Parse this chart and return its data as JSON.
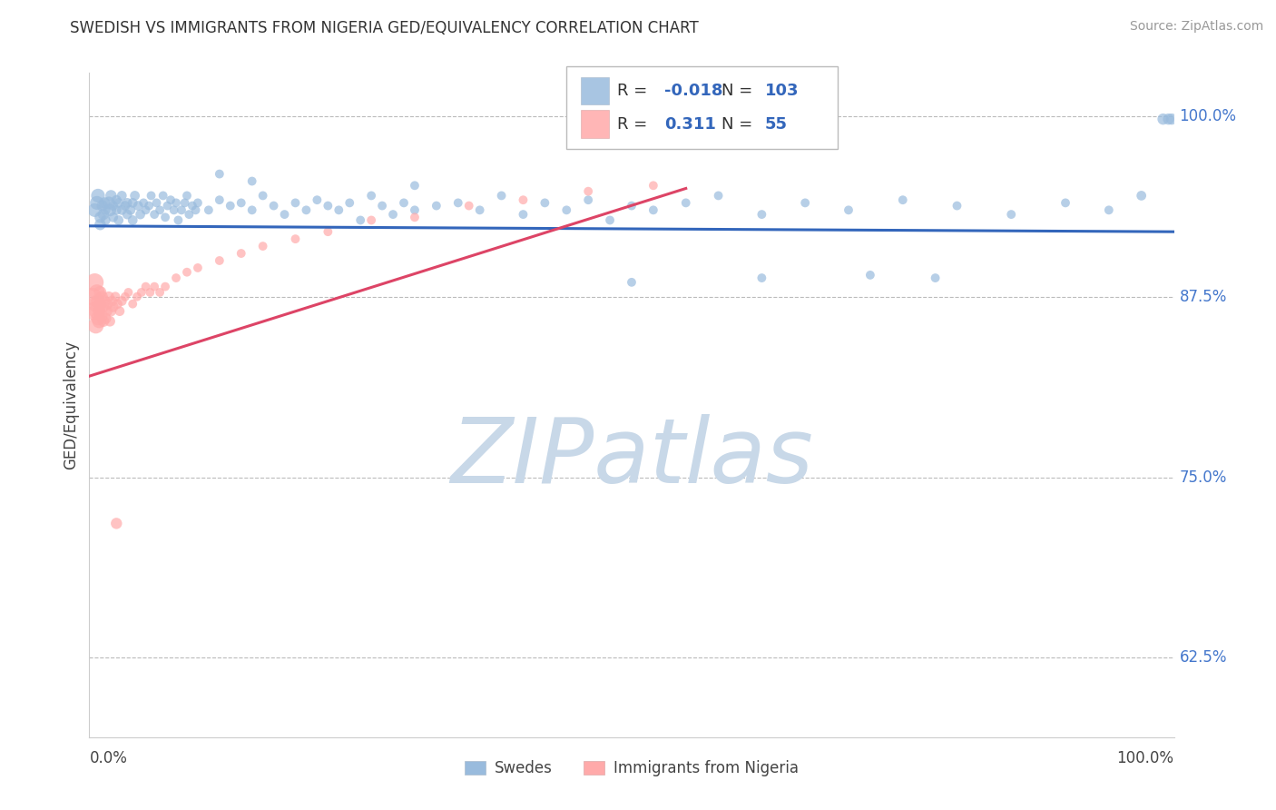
{
  "title": "SWEDISH VS IMMIGRANTS FROM NIGERIA GED/EQUIVALENCY CORRELATION CHART",
  "source": "Source: ZipAtlas.com",
  "ylabel": "GED/Equivalency",
  "xmin": 0.0,
  "xmax": 1.0,
  "ymin": 0.57,
  "ymax": 1.03,
  "yticks": [
    0.625,
    0.75,
    0.875,
    1.0
  ],
  "ytick_labels": [
    "62.5%",
    "75.0%",
    "87.5%",
    "100.0%"
  ],
  "blue_R": -0.018,
  "blue_N": 103,
  "pink_R": 0.311,
  "pink_N": 55,
  "blue_color": "#99BBDD",
  "pink_color": "#FFAAAA",
  "blue_line_color": "#3366BB",
  "pink_line_color": "#DD4466",
  "watermark_text": "ZIPatlas",
  "watermark_color": "#C8D8E8",
  "legend_label_blue": "Swedes",
  "legend_label_pink": "Immigrants from Nigeria",
  "blue_trend_x0": 0.0,
  "blue_trend_x1": 1.0,
  "blue_trend_y0": 0.924,
  "blue_trend_y1": 0.92,
  "pink_trend_x0": 0.0,
  "pink_trend_x1": 0.55,
  "pink_trend_y0": 0.82,
  "pink_trend_y1": 0.95,
  "blue_x": [
    0.005,
    0.007,
    0.008,
    0.01,
    0.01,
    0.012,
    0.013,
    0.014,
    0.015,
    0.015,
    0.018,
    0.019,
    0.02,
    0.022,
    0.022,
    0.025,
    0.025,
    0.027,
    0.027,
    0.03,
    0.03,
    0.033,
    0.035,
    0.035,
    0.038,
    0.04,
    0.04,
    0.042,
    0.045,
    0.047,
    0.05,
    0.052,
    0.055,
    0.057,
    0.06,
    0.062,
    0.065,
    0.068,
    0.07,
    0.072,
    0.075,
    0.078,
    0.08,
    0.082,
    0.085,
    0.088,
    0.09,
    0.092,
    0.095,
    0.098,
    0.1,
    0.11,
    0.12,
    0.13,
    0.14,
    0.15,
    0.16,
    0.17,
    0.18,
    0.19,
    0.2,
    0.21,
    0.22,
    0.23,
    0.24,
    0.25,
    0.26,
    0.27,
    0.28,
    0.29,
    0.3,
    0.32,
    0.34,
    0.36,
    0.38,
    0.4,
    0.42,
    0.44,
    0.46,
    0.48,
    0.5,
    0.52,
    0.55,
    0.58,
    0.62,
    0.66,
    0.7,
    0.75,
    0.8,
    0.85,
    0.9,
    0.94,
    0.97,
    0.99,
    0.995,
    0.998,
    0.5,
    0.62,
    0.72,
    0.78,
    0.12,
    0.15,
    0.3
  ],
  "blue_y": [
    0.935,
    0.94,
    0.945,
    0.93,
    0.925,
    0.938,
    0.932,
    0.94,
    0.935,
    0.928,
    0.94,
    0.935,
    0.945,
    0.938,
    0.93,
    0.942,
    0.935,
    0.94,
    0.928,
    0.935,
    0.945,
    0.938,
    0.932,
    0.94,
    0.935,
    0.94,
    0.928,
    0.945,
    0.938,
    0.932,
    0.94,
    0.935,
    0.938,
    0.945,
    0.932,
    0.94,
    0.935,
    0.945,
    0.93,
    0.938,
    0.942,
    0.935,
    0.94,
    0.928,
    0.935,
    0.94,
    0.945,
    0.932,
    0.938,
    0.935,
    0.94,
    0.935,
    0.942,
    0.938,
    0.94,
    0.935,
    0.945,
    0.938,
    0.932,
    0.94,
    0.935,
    0.942,
    0.938,
    0.935,
    0.94,
    0.928,
    0.945,
    0.938,
    0.932,
    0.94,
    0.935,
    0.938,
    0.94,
    0.935,
    0.945,
    0.932,
    0.94,
    0.935,
    0.942,
    0.928,
    0.938,
    0.935,
    0.94,
    0.945,
    0.932,
    0.94,
    0.935,
    0.942,
    0.938,
    0.932,
    0.94,
    0.935,
    0.945,
    0.998,
    0.998,
    0.998,
    0.885,
    0.888,
    0.89,
    0.888,
    0.96,
    0.955,
    0.952
  ],
  "blue_s": [
    120,
    120,
    120,
    80,
    80,
    80,
    80,
    80,
    60,
    60,
    100,
    100,
    80,
    60,
    60,
    60,
    60,
    60,
    60,
    60,
    60,
    60,
    60,
    60,
    60,
    60,
    60,
    60,
    60,
    60,
    50,
    50,
    50,
    50,
    50,
    50,
    50,
    50,
    50,
    50,
    50,
    50,
    50,
    50,
    50,
    50,
    50,
    50,
    50,
    50,
    50,
    50,
    50,
    50,
    50,
    50,
    50,
    50,
    50,
    50,
    50,
    50,
    50,
    50,
    50,
    50,
    50,
    50,
    50,
    50,
    50,
    50,
    50,
    50,
    50,
    50,
    50,
    50,
    50,
    50,
    50,
    50,
    50,
    50,
    50,
    50,
    50,
    50,
    50,
    50,
    50,
    50,
    60,
    80,
    80,
    80,
    50,
    50,
    50,
    50,
    50,
    50,
    50
  ],
  "pink_x": [
    0.003,
    0.004,
    0.005,
    0.006,
    0.006,
    0.007,
    0.007,
    0.008,
    0.008,
    0.009,
    0.009,
    0.01,
    0.01,
    0.011,
    0.012,
    0.013,
    0.013,
    0.014,
    0.015,
    0.016,
    0.017,
    0.018,
    0.019,
    0.02,
    0.021,
    0.022,
    0.024,
    0.026,
    0.028,
    0.03,
    0.033,
    0.036,
    0.04,
    0.044,
    0.048,
    0.052,
    0.056,
    0.06,
    0.065,
    0.07,
    0.08,
    0.09,
    0.1,
    0.12,
    0.14,
    0.16,
    0.19,
    0.22,
    0.26,
    0.3,
    0.35,
    0.4,
    0.46,
    0.52,
    0.025
  ],
  "pink_y": [
    0.875,
    0.865,
    0.885,
    0.87,
    0.855,
    0.865,
    0.878,
    0.86,
    0.872,
    0.858,
    0.865,
    0.87,
    0.878,
    0.862,
    0.875,
    0.868,
    0.858,
    0.872,
    0.86,
    0.865,
    0.87,
    0.875,
    0.858,
    0.865,
    0.872,
    0.868,
    0.875,
    0.87,
    0.865,
    0.872,
    0.875,
    0.878,
    0.87,
    0.875,
    0.878,
    0.882,
    0.878,
    0.882,
    0.878,
    0.882,
    0.888,
    0.892,
    0.895,
    0.9,
    0.905,
    0.91,
    0.915,
    0.92,
    0.928,
    0.93,
    0.938,
    0.942,
    0.948,
    0.952,
    0.718
  ],
  "pink_s": [
    200,
    200,
    200,
    160,
    160,
    160,
    160,
    120,
    120,
    120,
    100,
    100,
    100,
    100,
    80,
    80,
    80,
    80,
    80,
    80,
    70,
    70,
    70,
    70,
    70,
    70,
    60,
    60,
    60,
    60,
    50,
    50,
    50,
    50,
    50,
    50,
    50,
    50,
    50,
    50,
    50,
    50,
    50,
    50,
    50,
    50,
    50,
    50,
    50,
    50,
    50,
    50,
    50,
    50,
    80
  ]
}
